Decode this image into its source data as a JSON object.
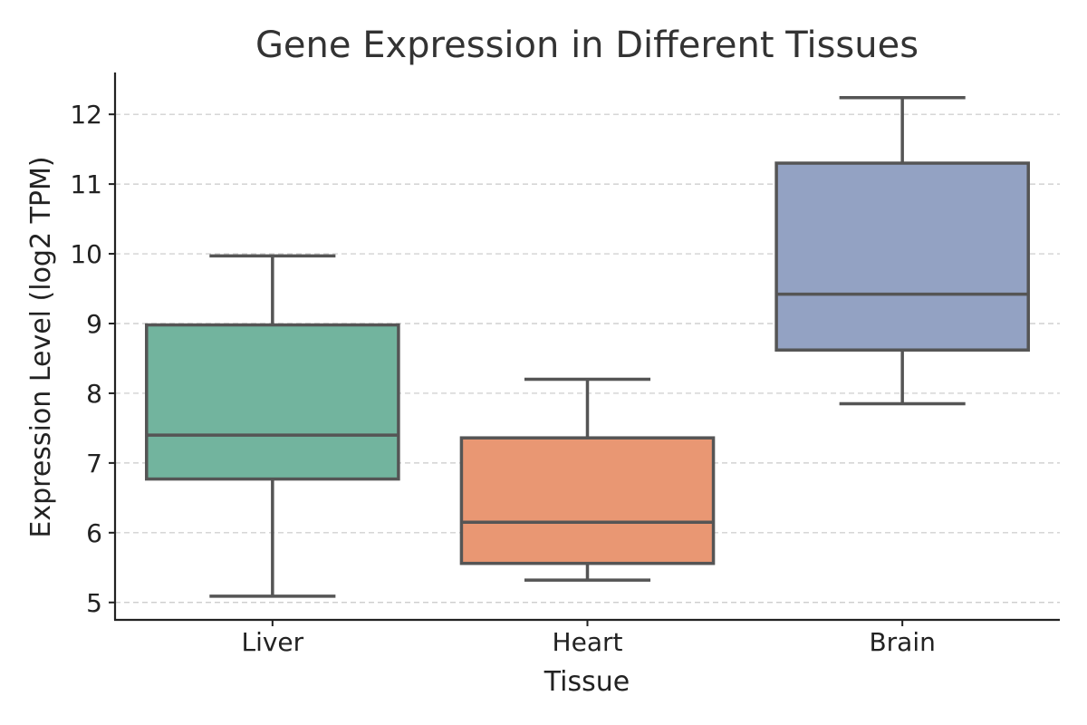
{
  "chart_data": {
    "type": "box",
    "title": "Gene Expression in Different Tissues",
    "xlabel": "Tissue",
    "ylabel": "Expression Level (log2 TPM)",
    "ylim": [
      4.75,
      12.6
    ],
    "yticks": [
      5,
      6,
      7,
      8,
      9,
      10,
      11,
      12
    ],
    "grid": "y-dashed",
    "categories": [
      "Liver",
      "Heart",
      "Brain"
    ],
    "boxes": [
      {
        "category": "Liver",
        "whisker_low": 5.09,
        "q1": 6.77,
        "median": 7.4,
        "q3": 8.98,
        "whisker_high": 9.97,
        "color": "#72b49e"
      },
      {
        "category": "Heart",
        "whisker_low": 5.32,
        "q1": 5.56,
        "median": 6.15,
        "q3": 7.36,
        "whisker_high": 8.2,
        "color": "#e99773"
      },
      {
        "category": "Brain",
        "whisker_low": 7.85,
        "q1": 8.62,
        "median": 9.42,
        "q3": 11.3,
        "whisker_high": 12.24,
        "color": "#93a2c3"
      }
    ]
  }
}
